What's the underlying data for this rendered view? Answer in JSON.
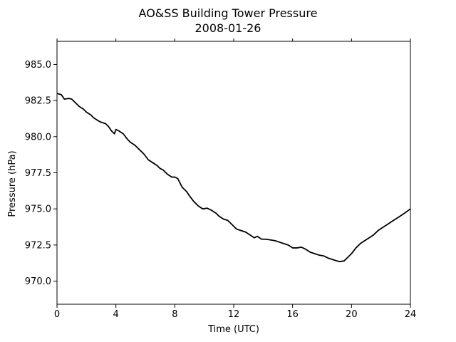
{
  "chart_data": {
    "type": "line",
    "title": "AO&SS Building Tower Pressure",
    "subtitle": "2008-01-26",
    "xlabel": "Time (UTC)",
    "ylabel": "Pressure (hPa)",
    "xlim": [
      0,
      24
    ],
    "ylim": [
      968.4,
      986.6
    ],
    "x_ticks": [
      0,
      4,
      8,
      12,
      16,
      20,
      24
    ],
    "y_ticks": [
      970.0,
      972.5,
      975.0,
      977.5,
      980.0,
      982.5,
      985.0
    ],
    "y_tick_labels": [
      "970.0",
      "972.5",
      "975.0",
      "977.5",
      "980.0",
      "982.5",
      "985.0"
    ],
    "grid": false,
    "line_color": "#000000",
    "series": [
      {
        "x": [
          0,
          0.3,
          0.5,
          0.8,
          1,
          1.2,
          1.5,
          1.8,
          2,
          2.3,
          2.5,
          2.8,
          3,
          3.3,
          3.5,
          3.7,
          3.9,
          4,
          4.2,
          4.5,
          4.8,
          5,
          5.3,
          5.6,
          5.9,
          6.2,
          6.5,
          6.8,
          7,
          7.2,
          7.5,
          7.8,
          8,
          8.2,
          8.5,
          8.8,
          9,
          9.3,
          9.6,
          9.9,
          10.2,
          10.5,
          10.8,
          11,
          11.3,
          11.6,
          11.9,
          12.2,
          12.5,
          12.8,
          13.1,
          13.4,
          13.6,
          13.9,
          14.2,
          14.5,
          14.8,
          15.1,
          15.4,
          15.7,
          16,
          16.3,
          16.6,
          16.9,
          17.2,
          17.5,
          17.8,
          18.1,
          18.4,
          18.7,
          19,
          19.2,
          19.5,
          19.7,
          20,
          20.3,
          20.6,
          20.9,
          21.2,
          21.5,
          21.8,
          22.1,
          22.4,
          22.7,
          23,
          23.3,
          23.6,
          24
        ],
        "y": [
          983.0,
          982.9,
          982.6,
          982.65,
          982.6,
          982.4,
          982.1,
          981.9,
          981.7,
          981.5,
          981.3,
          981.1,
          981.0,
          980.9,
          980.7,
          980.4,
          980.2,
          980.5,
          980.4,
          980.2,
          979.8,
          979.6,
          979.4,
          979.1,
          978.8,
          978.4,
          978.2,
          978.0,
          977.8,
          977.7,
          977.4,
          977.2,
          977.2,
          977.1,
          976.5,
          976.2,
          975.9,
          975.5,
          975.2,
          975.0,
          975.05,
          974.9,
          974.7,
          974.5,
          974.3,
          974.2,
          973.9,
          973.6,
          973.5,
          973.4,
          973.2,
          973.0,
          973.1,
          972.9,
          972.9,
          972.85,
          972.8,
          972.7,
          972.6,
          972.5,
          972.3,
          972.3,
          972.35,
          972.2,
          972.0,
          971.9,
          971.8,
          971.75,
          971.6,
          971.5,
          971.4,
          971.35,
          971.4,
          971.6,
          971.9,
          972.3,
          972.6,
          972.8,
          973.0,
          973.2,
          973.5,
          973.7,
          973.9,
          974.1,
          974.3,
          974.5,
          974.7,
          975.0
        ]
      }
    ]
  }
}
